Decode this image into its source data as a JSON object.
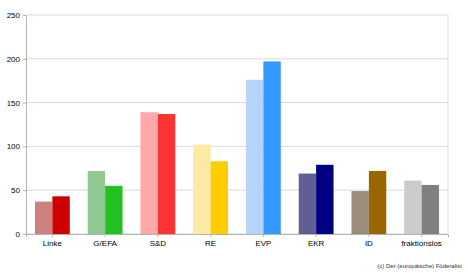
{
  "chart_data": {
    "type": "bar",
    "categories": [
      "Linke",
      "G/EFA",
      "S&D",
      "RE",
      "EVP",
      "EKR",
      "ID",
      "fraktionslos"
    ],
    "series": [
      {
        "colors": [
          "#cc8080",
          "#92c992",
          "#ffaaaa",
          "#fde9a6",
          "#b4d5f7",
          "#5f5f94",
          "#9b8d7c",
          "#cccccc"
        ],
        "values": [
          37,
          72,
          139,
          102,
          176,
          69,
          49,
          61
        ]
      },
      {
        "colors": [
          "#cc0000",
          "#22c222",
          "#ff3333",
          "#ffcc00",
          "#3399ff",
          "#000080",
          "#996600",
          "#808080"
        ],
        "values": [
          43,
          55,
          137,
          83,
          197,
          79,
          72,
          56
        ]
      }
    ],
    "ylim": [
      0,
      250
    ],
    "yticks": [
      0,
      50,
      100,
      150,
      200,
      250
    ],
    "grid": true,
    "annotations": [
      "(c) Der (europäische) Föderalist"
    ]
  }
}
